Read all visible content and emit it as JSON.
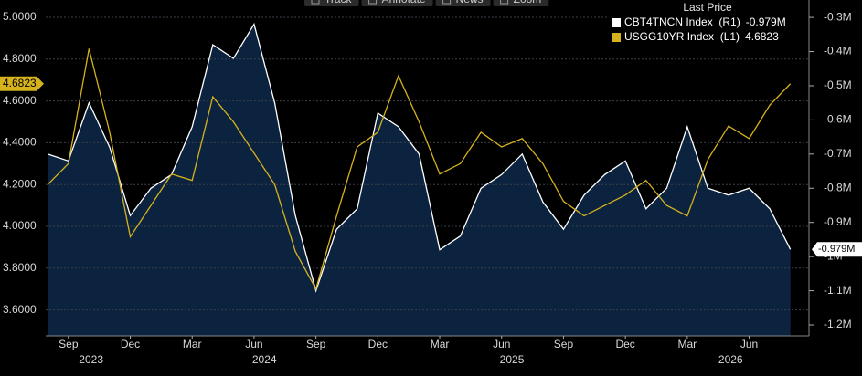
{
  "chart_data": {
    "type": "line",
    "toolbar": [
      "Track",
      "Annotate",
      "News",
      "Zoom"
    ],
    "legend_title": "Last Price",
    "x": [
      -1,
      0,
      1,
      2,
      3,
      4,
      5,
      6,
      7,
      8,
      9,
      10,
      11,
      12,
      13,
      14,
      15,
      16,
      17,
      18,
      19,
      20,
      21,
      22,
      23,
      24,
      25,
      26,
      27,
      28,
      29,
      30,
      31,
      32,
      33,
      34,
      35
    ],
    "xlim": [
      -1.1,
      35.9
    ],
    "xticks": [
      {
        "value": 0,
        "label": "Sep"
      },
      {
        "value": 3,
        "label": "Dec"
      },
      {
        "value": 6,
        "label": "Mar"
      },
      {
        "value": 9,
        "label": "Jun"
      },
      {
        "value": 12,
        "label": "Sep"
      },
      {
        "value": 15,
        "label": "Dec"
      },
      {
        "value": 18,
        "label": "Mar"
      },
      {
        "value": 21,
        "label": "Jun"
      },
      {
        "value": 24,
        "label": "Sep"
      },
      {
        "value": 27,
        "label": "Dec"
      },
      {
        "value": 30,
        "label": "Mar"
      },
      {
        "value": 33,
        "label": "Jun"
      }
    ],
    "year_ticks": [
      {
        "value": 1.1,
        "label": "2023"
      },
      {
        "value": 9.5,
        "label": "2024"
      },
      {
        "value": 21.5,
        "label": "2025"
      },
      {
        "value": 32.1,
        "label": "2026"
      }
    ],
    "ylim": [
      3.476,
      5.083
    ],
    "yticks": [
      {
        "value": 3.6,
        "label": "3.6000"
      },
      {
        "value": 3.8,
        "label": "3.8000"
      },
      {
        "value": 4.0,
        "label": "4.0000"
      },
      {
        "value": 4.2,
        "label": "4.2000"
      },
      {
        "value": 4.4,
        "label": "4.4000"
      },
      {
        "value": 4.6,
        "label": "4.6000"
      },
      {
        "value": 4.8,
        "label": "4.8000"
      },
      {
        "value": 5.0,
        "label": "5.0000"
      }
    ],
    "y2lim": [
      -1.232,
      -0.249
    ],
    "y2ticks": [
      {
        "value": -0.3,
        "label": "-0.3M"
      },
      {
        "value": -0.4,
        "label": "-0.4M"
      },
      {
        "value": -0.5,
        "label": "-0.5M"
      },
      {
        "value": -0.6,
        "label": "-0.6M"
      },
      {
        "value": -0.7,
        "label": "-0.7M"
      },
      {
        "value": -0.8,
        "label": "-0.8M"
      },
      {
        "value": -0.9,
        "label": "-0.9M"
      },
      {
        "value": -1,
        "label": "-1M"
      },
      {
        "value": -1.1,
        "label": "-1.1M"
      },
      {
        "value": -1.2,
        "label": "-1.2M"
      }
    ],
    "grid": true,
    "series": [
      {
        "name": "CBT4TNCN Index  (R1)",
        "color": "#ffffff",
        "fill": "#0c2340",
        "axis": "y2",
        "values": [
          -0.7,
          -0.72,
          -0.55,
          -0.68,
          -0.88,
          -0.8,
          -0.76,
          -0.62,
          -0.38,
          -0.42,
          -0.32,
          -0.55,
          -0.88,
          -1.1,
          -0.92,
          -0.86,
          -0.58,
          -0.62,
          -0.7,
          -0.98,
          -0.94,
          -0.8,
          -0.76,
          -0.7,
          -0.84,
          -0.92,
          -0.82,
          -0.76,
          -0.72,
          -0.86,
          -0.8,
          -0.62,
          -0.8,
          -0.82,
          -0.8,
          -0.86,
          -0.979
        ],
        "value_labels": [
          null,
          null,
          null,
          null,
          null,
          null,
          null,
          null,
          null,
          null,
          null,
          null,
          null,
          null,
          null,
          null,
          null,
          null,
          null,
          null,
          null,
          null,
          null,
          null,
          null,
          null,
          null,
          null,
          null,
          null,
          null,
          null,
          null,
          null,
          null,
          null,
          "-0.979M"
        ]
      },
      {
        "name": "USGG10YR Index  (L1)",
        "color": "#d6b21c",
        "axis": "y",
        "values": [
          4.2,
          4.3,
          4.85,
          4.45,
          3.95,
          4.1,
          4.25,
          4.22,
          4.62,
          4.5,
          4.35,
          4.2,
          3.88,
          3.7,
          4.05,
          4.38,
          4.45,
          4.72,
          4.5,
          4.25,
          4.3,
          4.45,
          4.38,
          4.42,
          4.3,
          4.12,
          4.05,
          4.1,
          4.15,
          4.22,
          4.1,
          4.05,
          4.32,
          4.48,
          4.42,
          4.58,
          4.6823
        ]
      }
    ]
  }
}
